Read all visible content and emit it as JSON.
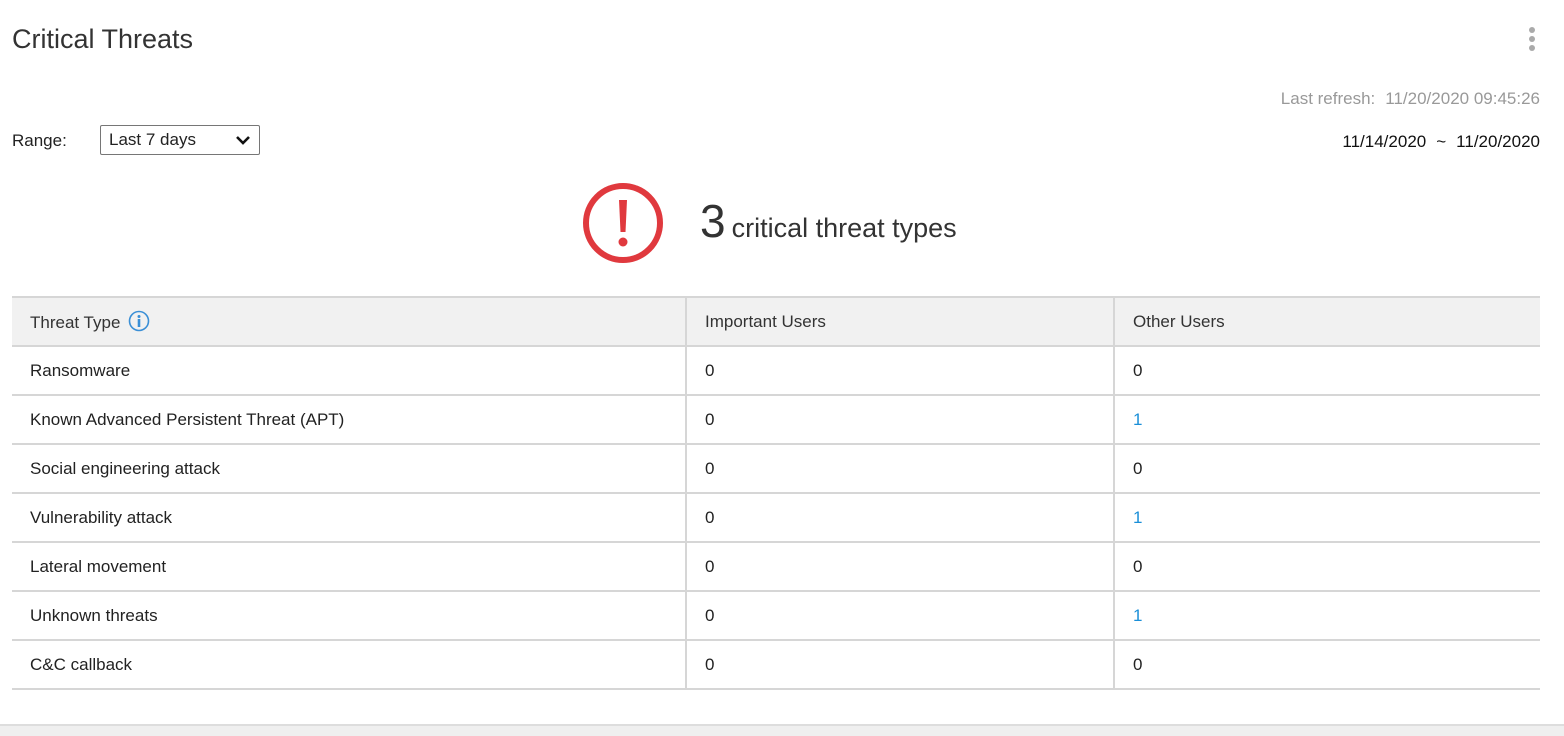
{
  "widget": {
    "title": "Critical Threats",
    "menu_icon": "kebab-menu-icon",
    "last_refresh_label": "Last refresh:",
    "last_refresh_value": "11/20/2020 09:45:26",
    "range_label": "Range:",
    "range_selected": "Last 7 days",
    "date_from": "11/14/2020",
    "date_sep": "~",
    "date_to": "11/20/2020"
  },
  "summary": {
    "count": "3",
    "text": "critical threat types",
    "icon": "alert-circle-icon",
    "icon_color": "#e0393e"
  },
  "table": {
    "headers": [
      "Threat Type",
      "Important Users",
      "Other Users"
    ],
    "rows": [
      {
        "type": "Ransomware",
        "important": "0",
        "other": "0"
      },
      {
        "type": "Known Advanced Persistent Threat (APT)",
        "important": "0",
        "other": "1"
      },
      {
        "type": "Social engineering attack",
        "important": "0",
        "other": "0"
      },
      {
        "type": "Vulnerability attack",
        "important": "0",
        "other": "1"
      },
      {
        "type": "Lateral movement",
        "important": "0",
        "other": "0"
      },
      {
        "type": "Unknown threats",
        "important": "0",
        "other": "1"
      },
      {
        "type": "C&C callback",
        "important": "0",
        "other": "0"
      }
    ]
  },
  "colors": {
    "link": "#1a8fd8",
    "alert": "#e0393e",
    "header_bg": "#f1f1f1"
  }
}
